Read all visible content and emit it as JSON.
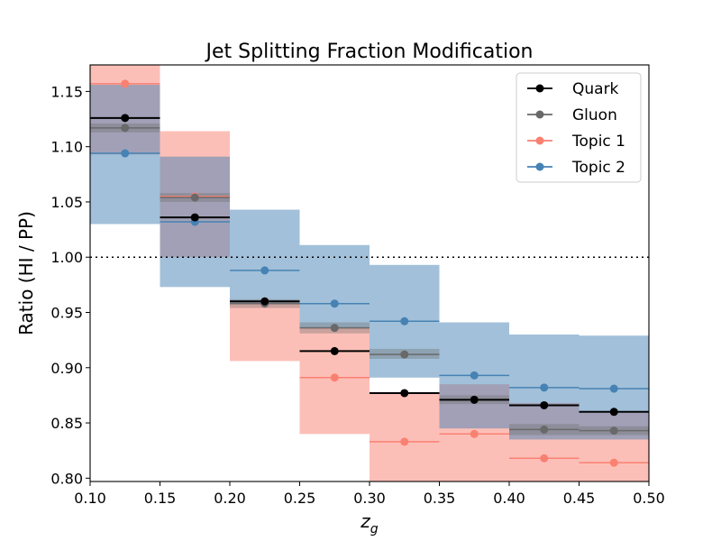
{
  "chart_data": {
    "type": "step-errorband",
    "title": "Jet Splitting Fraction Modification",
    "xlabel_main": "z",
    "xlabel_sub": "g",
    "ylabel": "Ratio (HI / PP)",
    "xlim": [
      0.1,
      0.5
    ],
    "ylim": [
      0.797,
      1.174
    ],
    "xticks": [
      0.1,
      0.15,
      0.2,
      0.25,
      0.3,
      0.35,
      0.4,
      0.45,
      0.5
    ],
    "xtick_labels": [
      "0.10",
      "0.15",
      "0.20",
      "0.25",
      "0.30",
      "0.35",
      "0.40",
      "0.45",
      "0.50"
    ],
    "yticks": [
      0.8,
      0.85,
      0.9,
      0.95,
      1.0,
      1.05,
      1.1,
      1.15
    ],
    "ytick_labels": [
      "0.80",
      "0.85",
      "0.90",
      "0.95",
      "1.00",
      "1.05",
      "1.10",
      "1.15"
    ],
    "reference_line": 1.0,
    "bin_edges": [
      0.1,
      0.15,
      0.2,
      0.25,
      0.3,
      0.35,
      0.4,
      0.45,
      0.5
    ],
    "legend_position": "upper-right",
    "series": [
      {
        "name": "Topic 1",
        "color": "#fa8072",
        "band_color": "#fa8072",
        "band_opacity": 0.5,
        "values": [
          1.157,
          1.055,
          0.96,
          0.891,
          0.833,
          0.84,
          0.818,
          0.814
        ],
        "band_low": [
          1.093,
          1.0,
          0.906,
          0.84,
          0.797,
          0.797,
          0.797,
          0.797
        ],
        "band_high": [
          1.174,
          1.114,
          0.961,
          0.936,
          0.878,
          0.885,
          0.868,
          0.859
        ],
        "legend_label": "Topic 1"
      },
      {
        "name": "Topic 2",
        "color": "#4682b4",
        "band_color": "#4682b4",
        "band_opacity": 0.5,
        "values": [
          1.094,
          1.032,
          0.988,
          0.958,
          0.942,
          0.893,
          0.882,
          0.881
        ],
        "band_low": [
          1.03,
          0.973,
          0.958,
          0.936,
          0.891,
          0.845,
          0.835,
          0.835
        ],
        "band_high": [
          1.156,
          1.091,
          1.043,
          1.011,
          0.993,
          0.941,
          0.93,
          0.929
        ],
        "legend_label": "Topic 2"
      },
      {
        "name": "Gluon",
        "color": "#696969",
        "band_color": "#696969",
        "band_opacity": 0.35,
        "values": [
          1.117,
          1.054,
          0.958,
          0.936,
          0.912,
          0.871,
          0.844,
          0.843
        ],
        "band_low": [
          1.113,
          1.05,
          0.954,
          0.931,
          0.908,
          0.867,
          0.839,
          0.839
        ],
        "band_high": [
          1.121,
          1.058,
          0.962,
          0.941,
          0.917,
          0.875,
          0.849,
          0.847
        ],
        "legend_label": "Gluon"
      },
      {
        "name": "Quark",
        "color": "#000000",
        "band_color": "#000000",
        "band_opacity": 0.0,
        "values": [
          1.126,
          1.036,
          0.96,
          0.915,
          0.877,
          0.871,
          0.866,
          0.86
        ],
        "band_low": [
          1.126,
          1.036,
          0.96,
          0.915,
          0.877,
          0.871,
          0.866,
          0.86
        ],
        "band_high": [
          1.126,
          1.036,
          0.96,
          0.915,
          0.877,
          0.871,
          0.866,
          0.86
        ],
        "legend_label": "Quark"
      }
    ],
    "legend_order": [
      "Quark",
      "Gluon",
      "Topic 1",
      "Topic 2"
    ]
  }
}
